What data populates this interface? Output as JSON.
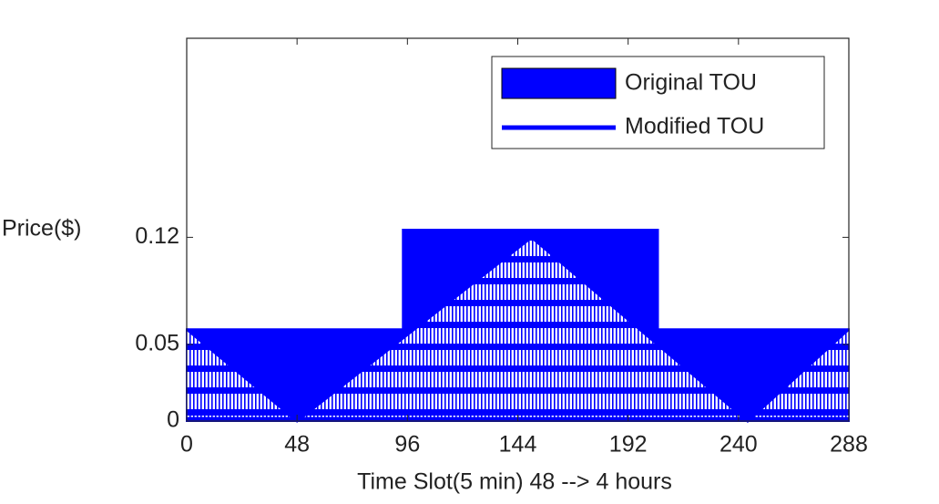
{
  "chart_data": {
    "type": "line",
    "xlabel": "Time Slot(5 min) 48 --> 4 hours",
    "ylabel": "Price($)",
    "xlim": [
      0,
      288
    ],
    "xticks": [
      0,
      48,
      96,
      144,
      192,
      240,
      288
    ],
    "ylim": [
      0,
      0.25
    ],
    "yticks": [
      0,
      0.05,
      0.12
    ],
    "legend": "upper right",
    "series": [
      {
        "name": "Original TOU",
        "color": "#0000ff",
        "style": "area",
        "x": [
          0,
          94,
          94,
          205,
          205,
          288
        ],
        "values": [
          0.06,
          0.06,
          0.125,
          0.125,
          0.06,
          0.06
        ]
      },
      {
        "name": "Modified TOU",
        "color": "#0000ff",
        "style": "line",
        "x": [
          0,
          48,
          150,
          244,
          288
        ],
        "values": [
          0.06,
          0,
          0.12,
          0,
          0.06
        ]
      }
    ]
  }
}
